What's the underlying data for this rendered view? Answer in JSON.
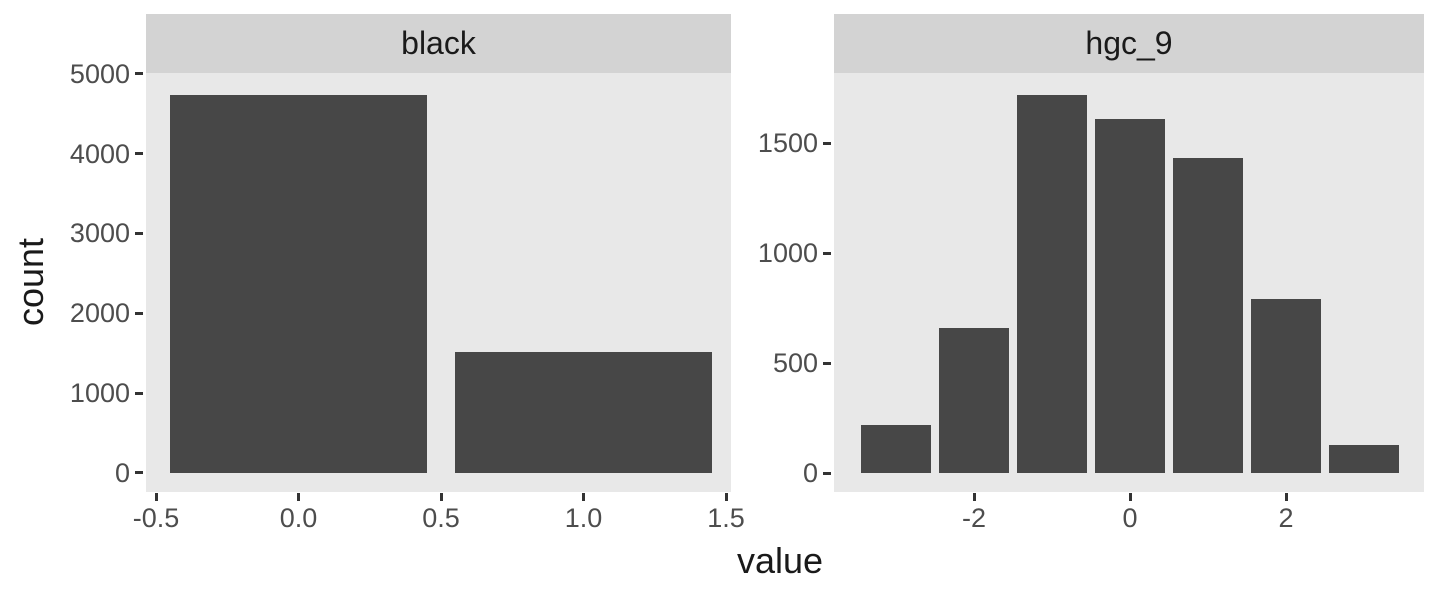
{
  "chart_data": {
    "type": "bar",
    "subtype": "faceted-histogram",
    "title": "",
    "xlabel": "value",
    "ylabel": "count",
    "legend": "none",
    "grid": "off",
    "facets": [
      {
        "label": "black",
        "xlim": [
          -0.535,
          1.5175
        ],
        "ylim": [
          -240,
          5010
        ],
        "bar_width": 0.9,
        "xticks": [
          {
            "value": -0.5,
            "label": "-0.5"
          },
          {
            "value": 0.0,
            "label": "0.0"
          },
          {
            "value": 0.5,
            "label": "0.5"
          },
          {
            "value": 1.0,
            "label": "1.0"
          },
          {
            "value": 1.5,
            "label": "1.5"
          }
        ],
        "yticks": [
          {
            "value": 0,
            "label": "0"
          },
          {
            "value": 1000,
            "label": "1000"
          },
          {
            "value": 2000,
            "label": "2000"
          },
          {
            "value": 3000,
            "label": "3000"
          },
          {
            "value": 4000,
            "label": "4000"
          },
          {
            "value": 5000,
            "label": "5000"
          }
        ],
        "bars": [
          {
            "x": 0,
            "count": 4740
          },
          {
            "x": 1,
            "count": 1510
          }
        ]
      },
      {
        "label": "hgc_9",
        "xlim": [
          -3.795,
          3.77
        ],
        "ylim": [
          -86,
          1818
        ],
        "bar_width": 0.9,
        "xticks": [
          {
            "value": -2,
            "label": "-2"
          },
          {
            "value": 0,
            "label": "0"
          },
          {
            "value": 2,
            "label": "2"
          }
        ],
        "yticks": [
          {
            "value": 0,
            "label": "0"
          },
          {
            "value": 500,
            "label": "500"
          },
          {
            "value": 1000,
            "label": "1000"
          },
          {
            "value": 1500,
            "label": "1500"
          }
        ],
        "bars": [
          {
            "x": -3,
            "count": 220
          },
          {
            "x": -2,
            "count": 660
          },
          {
            "x": -1,
            "count": 1720
          },
          {
            "x": 0,
            "count": 1610
          },
          {
            "x": 1,
            "count": 1430
          },
          {
            "x": 2,
            "count": 790
          },
          {
            "x": 3,
            "count": 130
          }
        ]
      }
    ],
    "colors": {
      "bar_fill": "#474747",
      "panel_bg": "#E8E8E8",
      "strip_bg": "#D3D3D3",
      "tick_mark": "#333333",
      "axis_text": "#4D4D4D",
      "title_text": "#1A1A1A",
      "background": "#FFFFFF"
    }
  }
}
